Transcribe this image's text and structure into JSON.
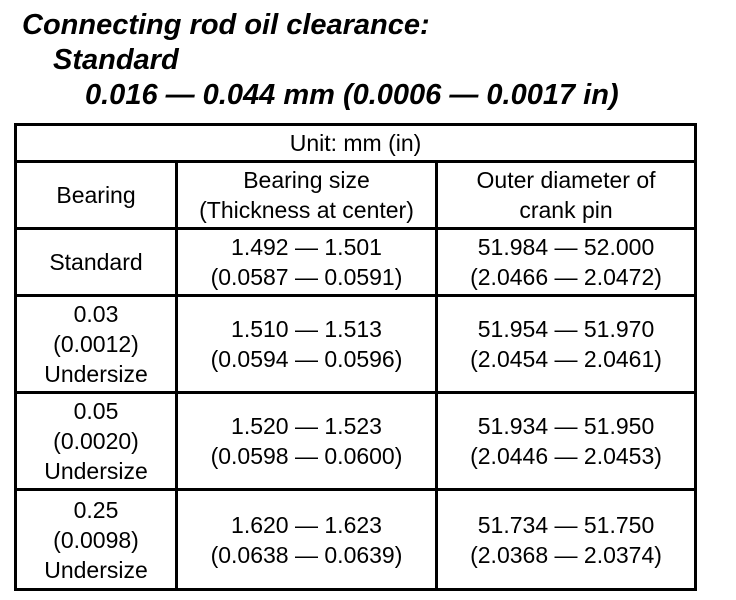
{
  "spec_header": {
    "title": "Connecting rod oil clearance:",
    "standard_label": "Standard",
    "standard_value": "0.016 — 0.044 mm (0.0006 — 0.0017 in)"
  },
  "table": {
    "unit_note": "Unit: mm (in)",
    "col_headers": {
      "bearing": "Bearing",
      "bearing_size": "Bearing size\n(Thickness at center)",
      "crank_pin_od": "Outer diameter of\ncrank pin"
    },
    "rows": [
      {
        "bearing": "Standard",
        "bearing_size": "1.492 — 1.501\n(0.0587 — 0.0591)",
        "crank_pin_od": "51.984 — 52.000\n(2.0466 — 2.0472)"
      },
      {
        "bearing": "0.03\n(0.0012)\nUndersize",
        "bearing_size": "1.510 — 1.513\n(0.0594 — 0.0596)",
        "crank_pin_od": "51.954 — 51.970\n(2.0454 — 2.0461)"
      },
      {
        "bearing": "0.05\n(0.0020)\nUndersize",
        "bearing_size": "1.520 — 1.523\n(0.0598 — 0.0600)",
        "crank_pin_od": "51.934 — 51.950\n(2.0446 — 2.0453)"
      },
      {
        "bearing": "0.25\n(0.0098)\nUndersize",
        "bearing_size": "1.620 — 1.623\n(0.0638 — 0.0639)",
        "crank_pin_od": "51.734 — 51.750\n(2.0368 — 2.0374)"
      }
    ]
  },
  "colors": {
    "text": "#000000",
    "background": "#ffffff",
    "border": "#000000"
  }
}
